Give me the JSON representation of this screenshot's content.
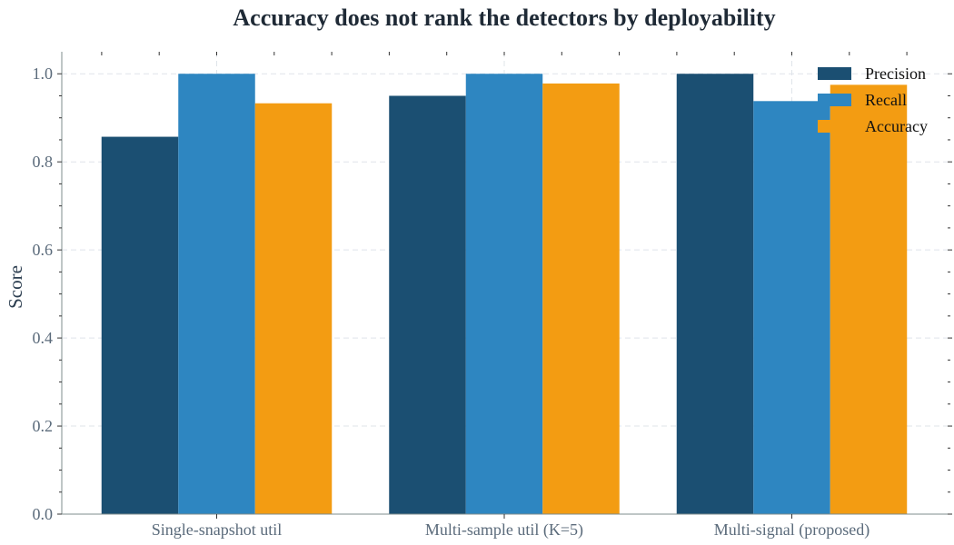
{
  "chart_data": {
    "type": "bar",
    "title": "Accuracy does not rank the detectors by deployability",
    "xlabel": "",
    "ylabel": "Score",
    "categories": [
      "Single-snapshot util",
      "Multi-sample util (K=5)",
      "Multi-signal (proposed)"
    ],
    "series": [
      {
        "name": "Precision",
        "values": [
          0.857,
          0.95,
          1.0
        ],
        "color": "#1b4f72"
      },
      {
        "name": "Recall",
        "values": [
          1.0,
          1.0,
          0.938
        ],
        "color": "#2e86c1"
      },
      {
        "name": "Accuracy",
        "values": [
          0.933,
          0.978,
          0.975
        ],
        "color": "#f39c12"
      }
    ],
    "ylim": [
      0,
      1.05
    ],
    "yticks": [
      0.0,
      0.2,
      0.4,
      0.6,
      0.8,
      1.0
    ],
    "ytick_labels": [
      "0.0",
      "0.2",
      "0.4",
      "0.6",
      "0.8",
      "1.0"
    ],
    "grid": true,
    "legend_position": "top-right"
  }
}
